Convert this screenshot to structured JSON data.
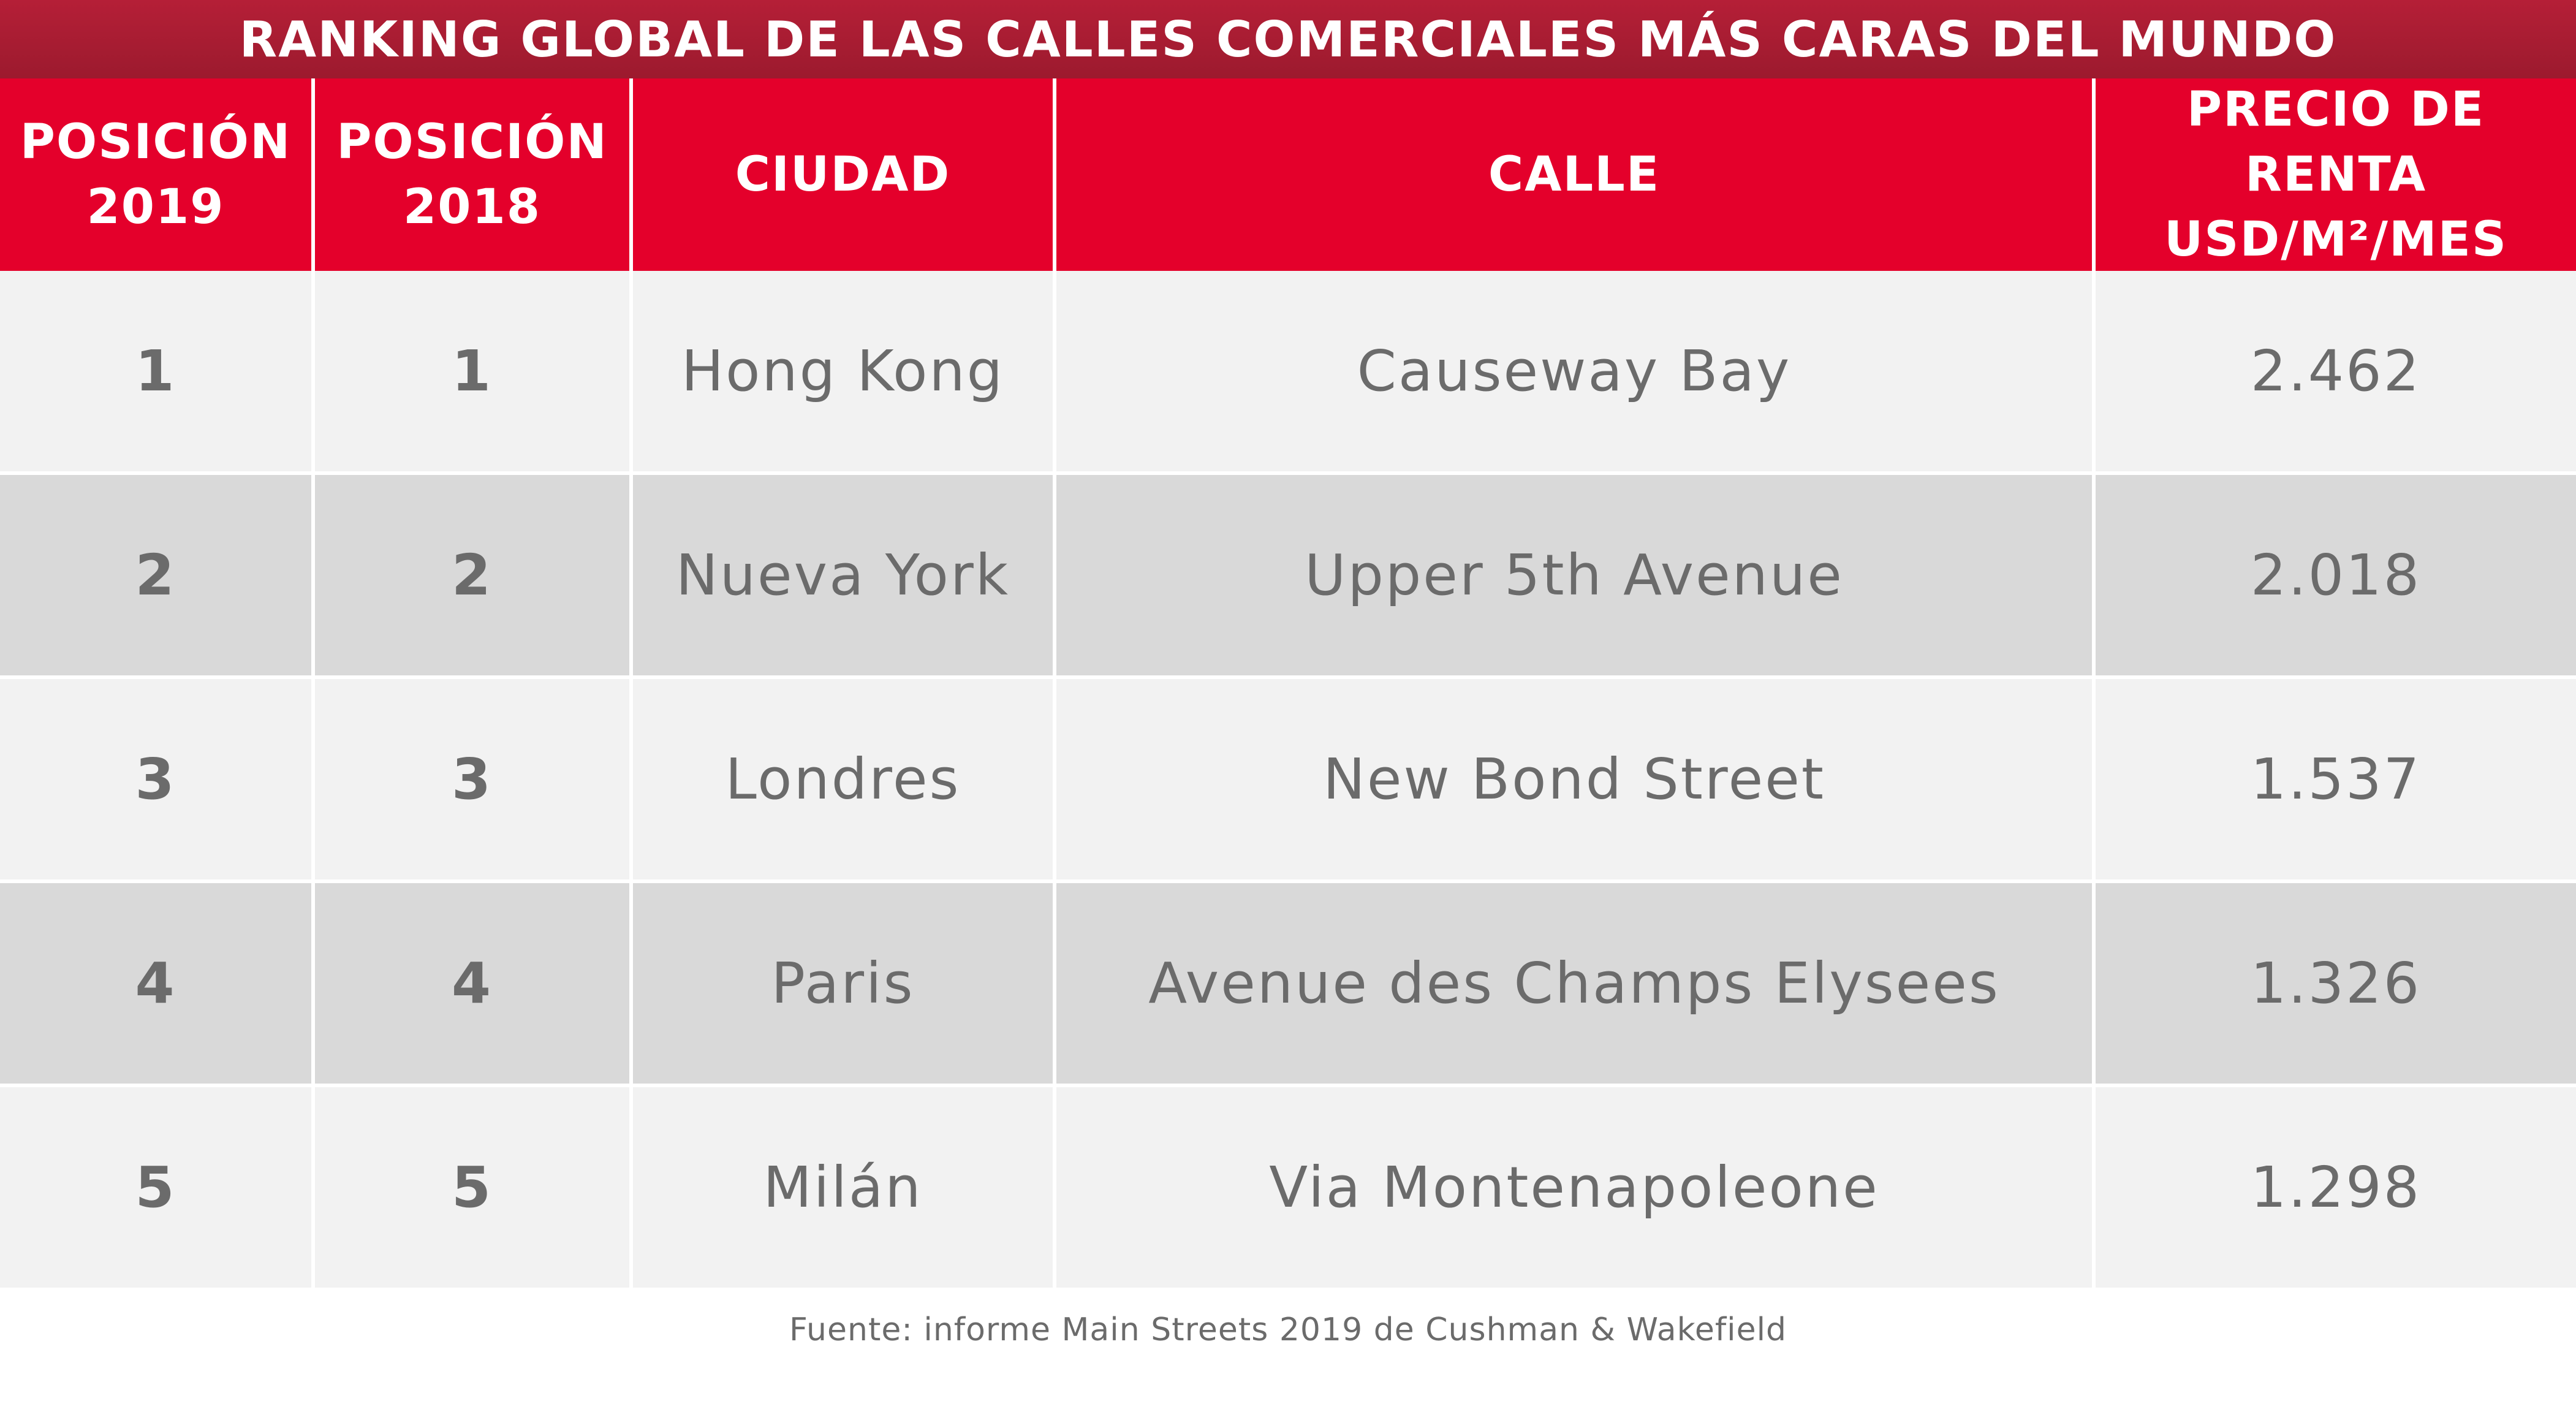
{
  "chart_data": {
    "type": "table",
    "title": "RANKING GLOBAL DE LAS CALLES COMERCIALES MÁS CARAS DEL MUNDO",
    "columns": [
      "POSICIÓN\n2019",
      "POSICIÓN\n2018",
      "CIUDAD",
      "CALLE",
      "PRECIO DE\nRENTA\nUSD/M²/MES"
    ],
    "rows": [
      [
        "1",
        "1",
        "Hong Kong",
        "Causeway Bay",
        "2.462"
      ],
      [
        "2",
        "2",
        "Nueva York",
        "Upper 5th Avenue",
        "2.018"
      ],
      [
        "3",
        "3",
        "Londres",
        "New Bond Street",
        "1.537"
      ],
      [
        "4",
        "4",
        "Paris",
        "Avenue des Champs Elysees",
        "1.326"
      ],
      [
        "5",
        "5",
        "Milán",
        "Via Montenapoleone",
        "1.298"
      ]
    ],
    "values": [
      2462,
      2018,
      1537,
      1326,
      1298
    ],
    "source": "Fuente: informe Main Streets 2019 de Cushman & Wakefield"
  },
  "colors": {
    "title_background": "#a81c33",
    "header_background": "#e4002b",
    "row_light": "#f2f2f2",
    "row_dark": "#d9d9d9",
    "header_text": "#ffffff",
    "cell_text": "#6b6b6b"
  }
}
